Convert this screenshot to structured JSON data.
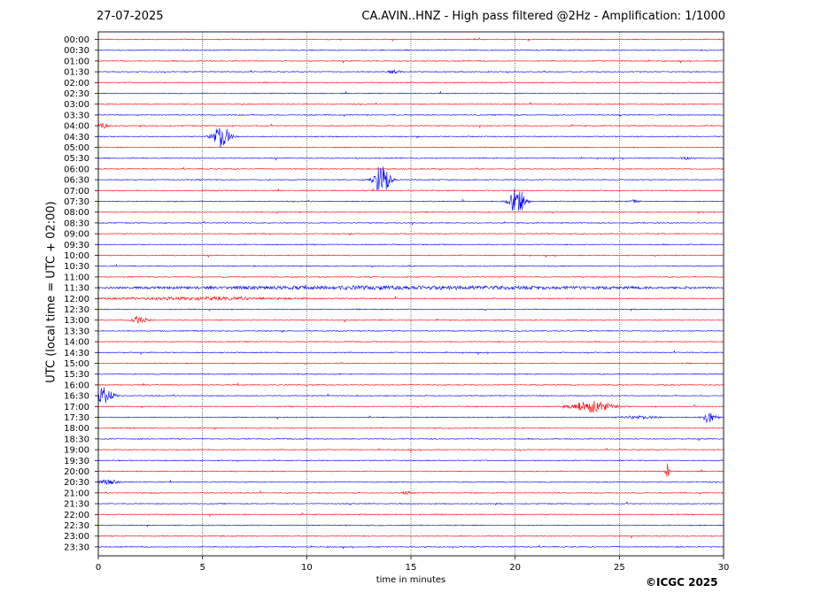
{
  "header": {
    "date": "27-07-2025",
    "title": "CA.AVIN..HNZ - High pass filtered @2Hz - Amplification: 1/1000"
  },
  "footer": {
    "copyright": "©ICGC 2025"
  },
  "chart_data": {
    "type": "line",
    "xlabel": "time in minutes",
    "ylabel": "UTC (local time = UTC + 02:00)",
    "xlim": [
      0,
      30
    ],
    "x_ticks": [
      0,
      5,
      10,
      15,
      20,
      25,
      30
    ],
    "x_tick_labels": [
      "0",
      "5",
      "10",
      "15",
      "20",
      "25",
      "30"
    ],
    "grid": "vertical dotted lines at 5, 10, 15, 20, 25",
    "trace_colors": [
      "#ff0000",
      "#0000ff"
    ],
    "row_labels": [
      "00:00",
      "00:30",
      "01:00",
      "01:30",
      "02:00",
      "02:30",
      "03:00",
      "03:30",
      "04:00",
      "04:30",
      "05:00",
      "05:30",
      "06:00",
      "06:30",
      "07:00",
      "07:30",
      "08:00",
      "08:30",
      "09:00",
      "09:30",
      "10:00",
      "10:30",
      "11:00",
      "11:30",
      "12:00",
      "12:30",
      "13:00",
      "13:30",
      "14:00",
      "14:30",
      "15:00",
      "15:30",
      "16:00",
      "16:30",
      "17:00",
      "17:30",
      "18:00",
      "18:30",
      "19:00",
      "19:30",
      "20:00",
      "20:30",
      "21:00",
      "21:30",
      "22:00",
      "22:30",
      "23:00",
      "23:30"
    ],
    "events": [
      {
        "row": "04:00",
        "minute": 0.2,
        "amplitude": 0.25,
        "duration": 0.6
      },
      {
        "row": "04:30",
        "minute": 5.9,
        "amplitude": 1.1,
        "duration": 0.9
      },
      {
        "row": "06:30",
        "minute": 13.6,
        "amplitude": 1.5,
        "duration": 0.8
      },
      {
        "row": "07:30",
        "minute": 20.1,
        "amplitude": 1.3,
        "duration": 0.8
      },
      {
        "row": "13:00",
        "minute": 2.0,
        "amplitude": 0.3,
        "duration": 0.8
      },
      {
        "row": "16:30",
        "minute": 0.3,
        "amplitude": 0.75,
        "duration": 0.9
      },
      {
        "row": "17:00",
        "minute": 23.7,
        "amplitude": 0.55,
        "duration": 2.0
      },
      {
        "row": "17:30",
        "minute": 29.3,
        "amplitude": 0.5,
        "duration": 0.7
      },
      {
        "row": "20:00",
        "minute": 27.3,
        "amplitude": 0.7,
        "duration": 0.2
      },
      {
        "row": "20:30",
        "minute": 0.5,
        "amplitude": 0.2,
        "duration": 1.0
      },
      {
        "row": "01:30",
        "minute": 14.2,
        "amplitude": 0.15,
        "duration": 0.6
      },
      {
        "row": "11:30",
        "minute": 15.0,
        "amplitude": 0.15,
        "duration": 30.0
      },
      {
        "row": "12:00",
        "minute": 5.0,
        "amplitude": 0.12,
        "duration": 10.0
      },
      {
        "row": "21:00",
        "minute": 14.8,
        "amplitude": 0.12,
        "duration": 0.5
      },
      {
        "row": "05:30",
        "minute": 28.2,
        "amplitude": 0.12,
        "duration": 0.6
      },
      {
        "row": "07:30",
        "minute": 25.7,
        "amplitude": 0.12,
        "duration": 0.5
      },
      {
        "row": "17:30",
        "minute": 26.0,
        "amplitude": 0.12,
        "duration": 2.0
      }
    ]
  }
}
